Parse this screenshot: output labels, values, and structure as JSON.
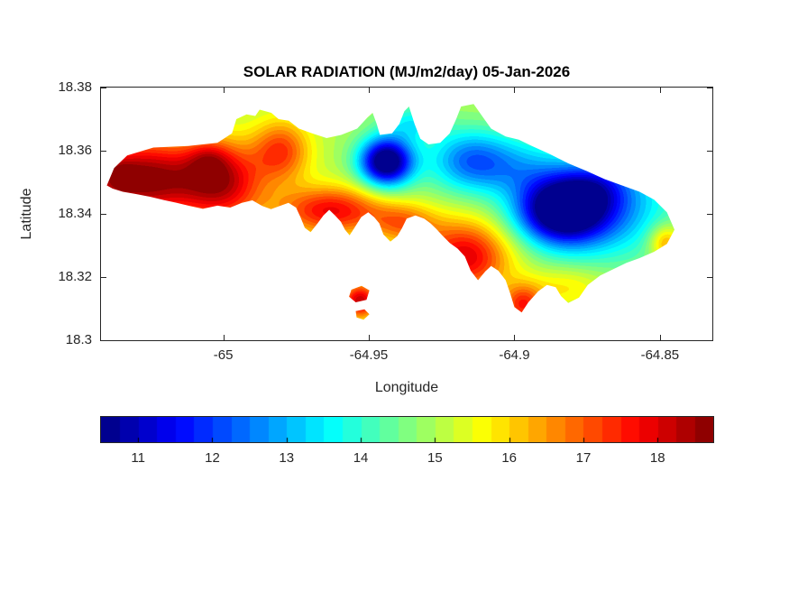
{
  "chart_data": {
    "type": "heatmap",
    "subtype": "filled-contour-map",
    "title": "SOLAR RADIATION (MJ/m2/day) 05-Jan-2026",
    "xlabel": "Longitude",
    "ylabel": "Latitude",
    "xlim": [
      -65.042,
      -64.832
    ],
    "ylim": [
      18.3,
      18.38
    ],
    "xticks": [
      -65,
      -64.95,
      -64.9,
      -64.85
    ],
    "xtick_labels": [
      "-65",
      "-64.95",
      "-64.9",
      "-64.85"
    ],
    "yticks": [
      18.38,
      18.36,
      18.34,
      18.32,
      18.3
    ],
    "ytick_labels": [
      "18.38",
      "18.36",
      "18.34",
      "18.32",
      "18.3"
    ],
    "colormap": "jet",
    "value_range": [
      10.5,
      18.75
    ],
    "contour_step": 0.25,
    "grid": false,
    "legend_position": "none",
    "colorbar": {
      "orientation": "horizontal",
      "ticks": [
        11,
        12,
        13,
        14,
        15,
        16,
        17,
        18
      ],
      "tick_labels": [
        "11",
        "12",
        "13",
        "14",
        "15",
        "16",
        "17",
        "18"
      ]
    },
    "field_model": {
      "base": 15.0,
      "gaussians": [
        {
          "lon": -65.028,
          "lat": 18.351,
          "amp": 3.8,
          "slon": 0.016,
          "slat": 0.009
        },
        {
          "lon": -65.036,
          "lat": 18.352,
          "amp": 0.8,
          "slon": 0.004,
          "slat": 0.0035
        },
        {
          "lon": -65.005,
          "lat": 18.3575,
          "amp": 0.9,
          "slon": 0.005,
          "slat": 0.004
        },
        {
          "lon": -65.0,
          "lat": 18.35,
          "amp": 2.8,
          "slon": 0.01,
          "slat": 0.009
        },
        {
          "lon": -64.98,
          "lat": 18.36,
          "amp": 2.2,
          "slon": 0.007,
          "slat": 0.007
        },
        {
          "lon": -64.963,
          "lat": 18.341,
          "amp": 2.8,
          "slon": 0.013,
          "slat": 0.0055
        },
        {
          "lon": -64.938,
          "lat": 18.337,
          "amp": 1.6,
          "slon": 0.008,
          "slat": 0.0045
        },
        {
          "lon": -64.917,
          "lat": 18.3265,
          "amp": 3.0,
          "slon": 0.011,
          "slat": 0.008
        },
        {
          "lon": -64.897,
          "lat": 18.311,
          "amp": 2.4,
          "slon": 0.005,
          "slat": 0.0045
        },
        {
          "lon": -64.953,
          "lat": 18.3125,
          "amp": 3.2,
          "slon": 0.0045,
          "slat": 0.004
        },
        {
          "lon": -64.944,
          "lat": 18.3565,
          "amp": -5.2,
          "slon": 0.0065,
          "slat": 0.0055
        },
        {
          "lon": -64.884,
          "lat": 18.341,
          "amp": -4.8,
          "slon": 0.011,
          "slat": 0.0075
        },
        {
          "lon": -64.868,
          "lat": 18.343,
          "amp": -2.2,
          "slon": 0.016,
          "slat": 0.012
        },
        {
          "lon": -64.916,
          "lat": 18.357,
          "amp": -2.2,
          "slon": 0.01,
          "slat": 0.007
        },
        {
          "lon": -64.935,
          "lat": 18.369,
          "amp": -1.3,
          "slon": 0.007,
          "slat": 0.004
        },
        {
          "lon": -64.9,
          "lat": 18.355,
          "amp": -1.4,
          "slon": 0.012,
          "slat": 0.007
        },
        {
          "lon": -64.848,
          "lat": 18.331,
          "amp": 1.8,
          "slon": 0.004,
          "slat": 0.004
        },
        {
          "lon": -64.872,
          "lat": 18.349,
          "amp": -1.0,
          "slon": 0.008,
          "slat": 0.005
        },
        {
          "lon": -64.882,
          "lat": 18.317,
          "amp": 0.9,
          "slon": 0.01,
          "slat": 0.0045
        }
      ]
    },
    "island_outline": [
      [
        -65.04,
        18.349
      ],
      [
        -65.0375,
        18.3545
      ],
      [
        -65.033,
        18.3585
      ],
      [
        -65.024,
        18.361
      ],
      [
        -65.012,
        18.3615
      ],
      [
        -65.002,
        18.3625
      ],
      [
        -64.997,
        18.3655
      ],
      [
        -64.9955,
        18.37
      ],
      [
        -64.992,
        18.3715
      ],
      [
        -64.989,
        18.371
      ],
      [
        -64.9875,
        18.373
      ],
      [
        -64.9835,
        18.372
      ],
      [
        -64.981,
        18.37
      ],
      [
        -64.9775,
        18.3695
      ],
      [
        -64.974,
        18.367
      ],
      [
        -64.9695,
        18.3655
      ],
      [
        -64.9645,
        18.364
      ],
      [
        -64.9595,
        18.365
      ],
      [
        -64.954,
        18.367
      ],
      [
        -64.9505,
        18.3705
      ],
      [
        -64.9487,
        18.372
      ],
      [
        -64.9473,
        18.3685
      ],
      [
        -64.9462,
        18.365
      ],
      [
        -64.942,
        18.3655
      ],
      [
        -64.9395,
        18.3685
      ],
      [
        -64.9378,
        18.3725
      ],
      [
        -64.9362,
        18.374
      ],
      [
        -64.9343,
        18.3685
      ],
      [
        -64.9323,
        18.3638
      ],
      [
        -64.9295,
        18.362
      ],
      [
        -64.9255,
        18.3625
      ],
      [
        -64.9222,
        18.3655
      ],
      [
        -64.92,
        18.37
      ],
      [
        -64.9183,
        18.374
      ],
      [
        -64.914,
        18.3748
      ],
      [
        -64.9108,
        18.3706
      ],
      [
        -64.908,
        18.367
      ],
      [
        -64.903,
        18.3645
      ],
      [
        -64.8985,
        18.3635
      ],
      [
        -64.894,
        18.3615
      ],
      [
        -64.888,
        18.359
      ],
      [
        -64.8815,
        18.356
      ],
      [
        -64.875,
        18.3535
      ],
      [
        -64.869,
        18.351
      ],
      [
        -64.863,
        18.349
      ],
      [
        -64.857,
        18.347
      ],
      [
        -64.852,
        18.3445
      ],
      [
        -64.8476,
        18.3405
      ],
      [
        -64.845,
        18.335
      ],
      [
        -64.8476,
        18.3305
      ],
      [
        -64.852,
        18.328
      ],
      [
        -64.857,
        18.326
      ],
      [
        -64.8615,
        18.3245
      ],
      [
        -64.866,
        18.3225
      ],
      [
        -64.8705,
        18.3205
      ],
      [
        -64.8748,
        18.3175
      ],
      [
        -64.8778,
        18.3135
      ],
      [
        -64.8815,
        18.3118
      ],
      [
        -64.884,
        18.314
      ],
      [
        -64.8858,
        18.3168
      ],
      [
        -64.8888,
        18.3175
      ],
      [
        -64.8918,
        18.3155
      ],
      [
        -64.8952,
        18.312
      ],
      [
        -64.8975,
        18.3088
      ],
      [
        -64.9,
        18.3105
      ],
      [
        -64.9015,
        18.315
      ],
      [
        -64.903,
        18.319
      ],
      [
        -64.9055,
        18.322
      ],
      [
        -64.908,
        18.3235
      ],
      [
        -64.91,
        18.3218
      ],
      [
        -64.9125,
        18.319
      ],
      [
        -64.915,
        18.322
      ],
      [
        -64.917,
        18.3265
      ],
      [
        -64.9195,
        18.329
      ],
      [
        -64.9222,
        18.3308
      ],
      [
        -64.9248,
        18.3332
      ],
      [
        -64.9268,
        18.3352
      ],
      [
        -64.9288,
        18.337
      ],
      [
        -64.931,
        18.3385
      ],
      [
        -64.934,
        18.3395
      ],
      [
        -64.937,
        18.3385
      ],
      [
        -64.9386,
        18.3355
      ],
      [
        -64.9402,
        18.333
      ],
      [
        -64.9426,
        18.3312
      ],
      [
        -64.945,
        18.3335
      ],
      [
        -64.9464,
        18.337
      ],
      [
        -64.9482,
        18.339
      ],
      [
        -64.9502,
        18.3405
      ],
      [
        -64.9526,
        18.339
      ],
      [
        -64.955,
        18.3355
      ],
      [
        -64.9566,
        18.3332
      ],
      [
        -64.9582,
        18.335
      ],
      [
        -64.9596,
        18.3375
      ],
      [
        -64.9616,
        18.3395
      ],
      [
        -64.9636,
        18.3413
      ],
      [
        -64.9656,
        18.3395
      ],
      [
        -64.9676,
        18.337
      ],
      [
        -64.97,
        18.3342
      ],
      [
        -64.972,
        18.3356
      ],
      [
        -64.9735,
        18.339
      ],
      [
        -64.975,
        18.342
      ],
      [
        -64.9776,
        18.3435
      ],
      [
        -64.9806,
        18.3425
      ],
      [
        -64.9836,
        18.3415
      ],
      [
        -64.9866,
        18.3425
      ],
      [
        -64.99,
        18.3443
      ],
      [
        -64.9936,
        18.3435
      ],
      [
        -64.9976,
        18.342
      ],
      [
        -65.002,
        18.3426
      ],
      [
        -65.007,
        18.3416
      ],
      [
        -65.0115,
        18.3425
      ],
      [
        -65.016,
        18.3435
      ],
      [
        -65.0205,
        18.3444
      ],
      [
        -65.025,
        18.3454
      ],
      [
        -65.03,
        18.3463
      ],
      [
        -65.0345,
        18.347
      ],
      [
        -65.038,
        18.348
      ]
    ],
    "islets": [
      [
        [
          -64.956,
          18.316
        ],
        [
          -64.9525,
          18.3172
        ],
        [
          -64.9498,
          18.3158
        ],
        [
          -64.9508,
          18.3128
        ],
        [
          -64.9545,
          18.312
        ],
        [
          -64.9568,
          18.3138
        ]
      ],
      [
        [
          -64.9545,
          18.3092
        ],
        [
          -64.9515,
          18.3098
        ],
        [
          -64.9498,
          18.3082
        ],
        [
          -64.9518,
          18.3065
        ],
        [
          -64.9542,
          18.3072
        ]
      ]
    ]
  }
}
